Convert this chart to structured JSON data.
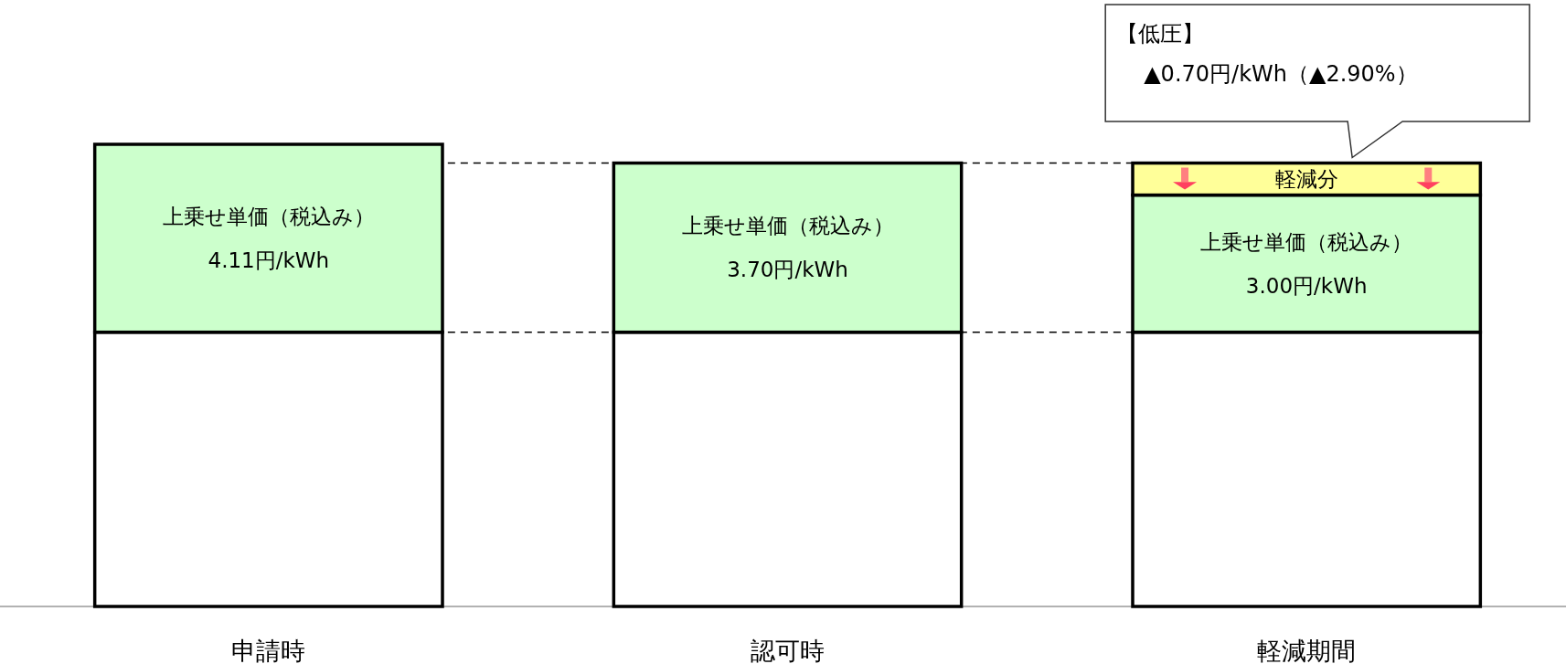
{
  "chart_data": {
    "type": "bar",
    "stacked": true,
    "categories": [
      "申請時",
      "認可時",
      "軽減期間"
    ],
    "series": [
      {
        "color": "#ffffff",
        "values": [
          6.0,
          6.0,
          6.0
        ]
      },
      {
        "color": "#ccffcc",
        "values": [
          4.11,
          3.7,
          3.0
        ],
        "value_labels": [
          "上乗せ単価（税込み）\n4.11円/kWh",
          "上乗せ単価（税込み）\n3.70円/kWh",
          "上乗せ単価（税込み）\n3.00円/kWh"
        ]
      },
      {
        "color": "#ffff99",
        "values": [
          null,
          null,
          0.7
        ],
        "value_labels": [
          null,
          null,
          "軽減分"
        ]
      }
    ],
    "ref_lines": [
      {
        "axis": "y",
        "value": 6.0,
        "color": "#000000",
        "line_style": "dashed"
      },
      {
        "axis": "y",
        "value": 9.7,
        "color": "#000000",
        "line_style": "dashed"
      }
    ],
    "annotations": [
      "【低圧】\n▲0.70円/kWh（▲2.90%）"
    ]
  }
}
